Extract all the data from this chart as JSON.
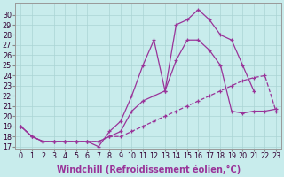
{
  "xlabel": "Windchill (Refroidissement éolien,°C)",
  "bg_color": "#c8ecec",
  "line_color": "#993399",
  "grid_color": "#aad4d4",
  "x_s1": [
    0,
    1,
    2,
    3,
    4,
    5,
    6,
    7,
    8,
    9,
    10,
    11,
    12,
    13,
    14,
    15,
    16,
    17,
    18,
    19,
    20,
    21
  ],
  "y_s1": [
    19.0,
    18.0,
    17.5,
    17.5,
    17.5,
    17.5,
    17.5,
    17.0,
    18.5,
    19.5,
    22.0,
    25.0,
    27.5,
    22.5,
    29.0,
    29.5,
    30.5,
    29.5,
    28.0,
    27.5,
    25.0,
    22.5
  ],
  "x_s2": [
    0,
    1,
    2,
    3,
    4,
    5,
    6,
    7,
    8,
    9,
    10,
    11,
    12,
    13,
    14,
    15,
    16,
    17,
    18,
    19,
    20,
    21,
    22,
    23
  ],
  "y_s2": [
    19.0,
    18.0,
    17.5,
    17.5,
    17.5,
    17.5,
    17.5,
    17.5,
    18.0,
    18.5,
    20.5,
    21.5,
    22.0,
    22.5,
    25.5,
    27.5,
    27.5,
    26.5,
    25.0,
    20.5,
    20.3,
    20.5,
    20.5,
    20.7
  ],
  "x_s3": [
    0,
    1,
    2,
    3,
    4,
    5,
    6,
    7,
    8,
    9,
    10,
    11,
    12,
    13,
    14,
    15,
    16,
    17,
    18,
    19,
    20,
    21,
    22,
    23
  ],
  "y_s3": [
    19.0,
    18.0,
    17.5,
    17.5,
    17.5,
    17.5,
    17.5,
    17.5,
    18.0,
    18.0,
    18.5,
    19.0,
    19.5,
    20.0,
    20.5,
    21.0,
    21.5,
    22.0,
    22.5,
    23.0,
    23.5,
    23.8,
    24.0,
    20.5
  ],
  "xlim": [
    -0.5,
    23.5
  ],
  "ylim": [
    16.8,
    31.2
  ],
  "yticks": [
    17,
    18,
    19,
    20,
    21,
    22,
    23,
    24,
    25,
    26,
    27,
    28,
    29,
    30
  ],
  "xticks": [
    0,
    1,
    2,
    3,
    4,
    5,
    6,
    7,
    8,
    9,
    10,
    11,
    12,
    13,
    14,
    15,
    16,
    17,
    18,
    19,
    20,
    21,
    22,
    23
  ],
  "marker": "+",
  "ms": 3.5,
  "lw": 0.9,
  "xlabel_fontsize": 7.0,
  "tick_fontsize": 5.8
}
